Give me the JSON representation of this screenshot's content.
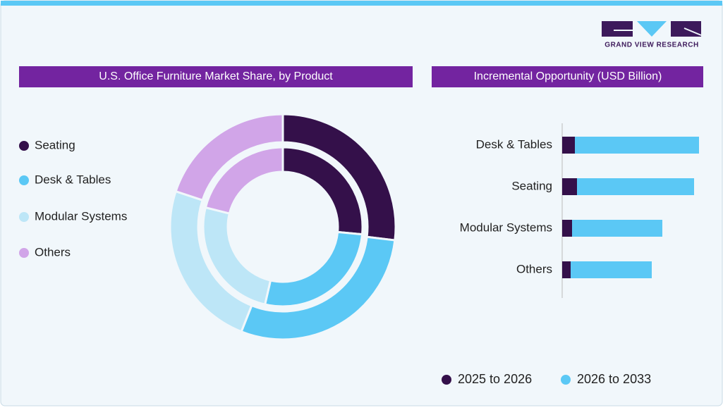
{
  "logo": "GRAND VIEW RESEARCH",
  "chart_data": [
    {
      "type": "donut",
      "title": "U.S. Office Furniture Market Share, by Product",
      "categories": [
        "Seating",
        "Desk & Tables",
        "Modular Systems",
        "Others"
      ],
      "colors": [
        "#34104a",
        "#5bc8f5",
        "#bde6f7",
        "#d1a5e8"
      ],
      "series": [
        {
          "values": [
            26.9,
            29.1,
            24.1,
            19.9
          ]
        },
        {
          "values": [
            26.5,
            27.1,
            25.3,
            21.1
          ]
        }
      ]
    },
    {
      "type": "bar",
      "orientation": "horizontal",
      "stacked": true,
      "title": "Incremental Opportunity (USD Billion)",
      "categories": [
        "Desk & Tables",
        "Seating",
        "Modular Systems",
        "Others"
      ],
      "series": [
        {
          "name": "2025 to 2026",
          "color": "#34104a",
          "values": [
            1.8,
            2.1,
            1.4,
            1.2
          ]
        },
        {
          "name": "2026 to 2033",
          "color": "#5bc8f5",
          "values": [
            17.6,
            16.6,
            12.8,
            11.5
          ]
        }
      ],
      "xlim": [
        0,
        20
      ]
    }
  ]
}
